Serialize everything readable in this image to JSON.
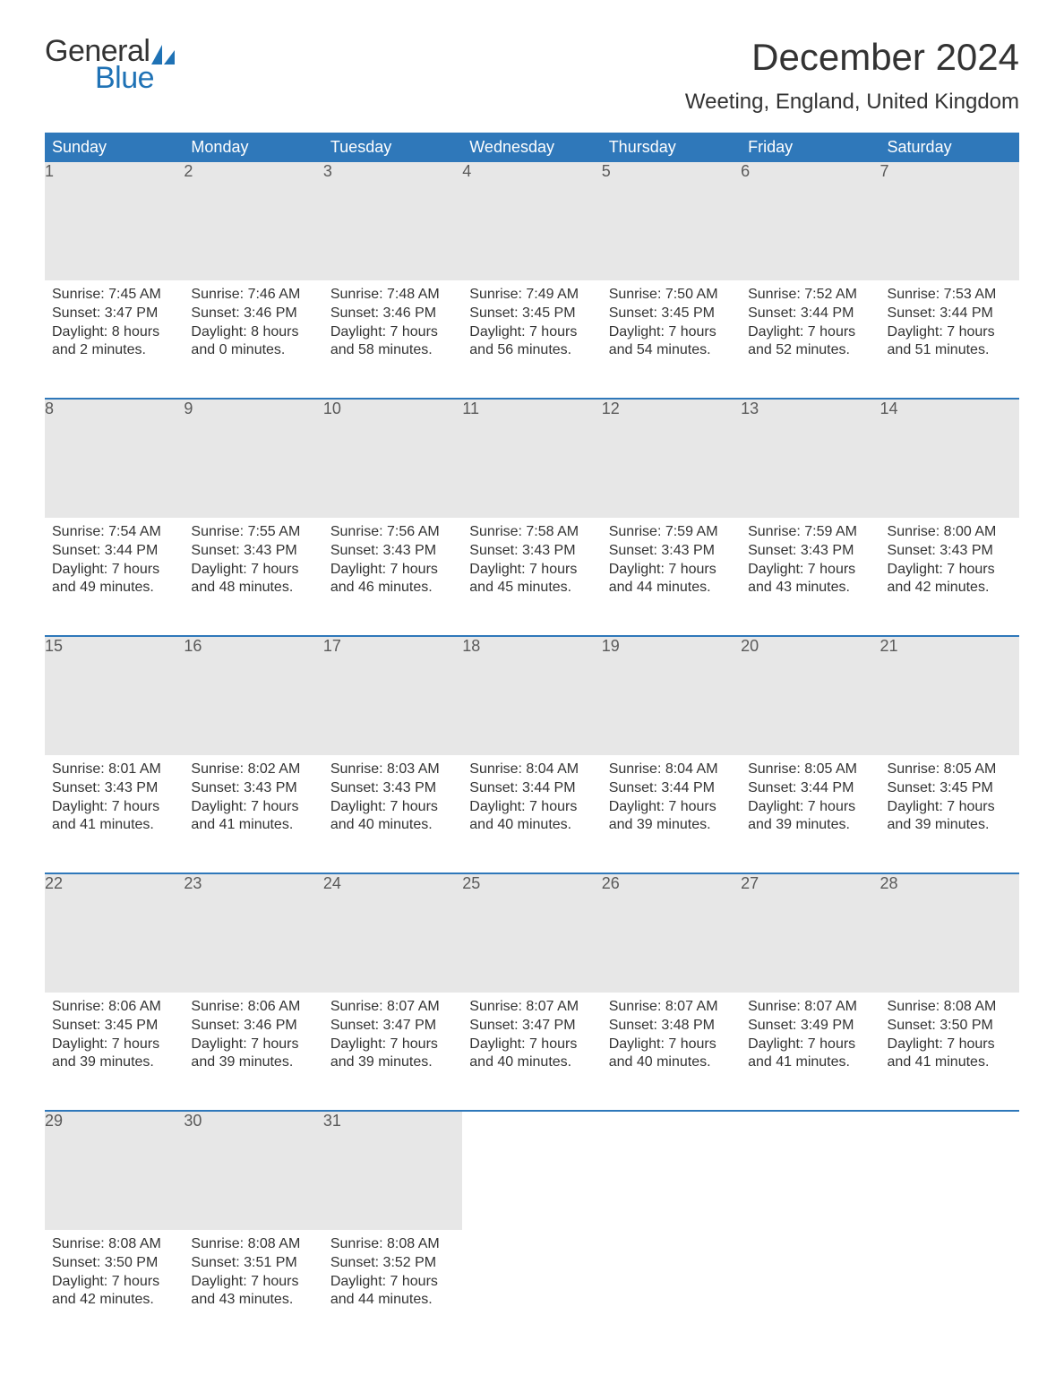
{
  "brand": {
    "word1": "General",
    "word2": "Blue",
    "sail_color": "#1f72b5"
  },
  "header": {
    "month_title": "December 2024",
    "location": "Weeting, England, United Kingdom"
  },
  "calendar": {
    "header_bg": "#2f78ba",
    "header_fg": "#ffffff",
    "daynum_bg": "#e7e7e7",
    "rule_color": "#2f78ba",
    "text_color": "#333333",
    "columns": [
      "Sunday",
      "Monday",
      "Tuesday",
      "Wednesday",
      "Thursday",
      "Friday",
      "Saturday"
    ],
    "weeks": [
      [
        {
          "n": "1",
          "sunrise": "7:45 AM",
          "sunset": "3:47 PM",
          "daylight_h": "8",
          "daylight_m": "2"
        },
        {
          "n": "2",
          "sunrise": "7:46 AM",
          "sunset": "3:46 PM",
          "daylight_h": "8",
          "daylight_m": "0"
        },
        {
          "n": "3",
          "sunrise": "7:48 AM",
          "sunset": "3:46 PM",
          "daylight_h": "7",
          "daylight_m": "58"
        },
        {
          "n": "4",
          "sunrise": "7:49 AM",
          "sunset": "3:45 PM",
          "daylight_h": "7",
          "daylight_m": "56"
        },
        {
          "n": "5",
          "sunrise": "7:50 AM",
          "sunset": "3:45 PM",
          "daylight_h": "7",
          "daylight_m": "54"
        },
        {
          "n": "6",
          "sunrise": "7:52 AM",
          "sunset": "3:44 PM",
          "daylight_h": "7",
          "daylight_m": "52"
        },
        {
          "n": "7",
          "sunrise": "7:53 AM",
          "sunset": "3:44 PM",
          "daylight_h": "7",
          "daylight_m": "51"
        }
      ],
      [
        {
          "n": "8",
          "sunrise": "7:54 AM",
          "sunset": "3:44 PM",
          "daylight_h": "7",
          "daylight_m": "49"
        },
        {
          "n": "9",
          "sunrise": "7:55 AM",
          "sunset": "3:43 PM",
          "daylight_h": "7",
          "daylight_m": "48"
        },
        {
          "n": "10",
          "sunrise": "7:56 AM",
          "sunset": "3:43 PM",
          "daylight_h": "7",
          "daylight_m": "46"
        },
        {
          "n": "11",
          "sunrise": "7:58 AM",
          "sunset": "3:43 PM",
          "daylight_h": "7",
          "daylight_m": "45"
        },
        {
          "n": "12",
          "sunrise": "7:59 AM",
          "sunset": "3:43 PM",
          "daylight_h": "7",
          "daylight_m": "44"
        },
        {
          "n": "13",
          "sunrise": "7:59 AM",
          "sunset": "3:43 PM",
          "daylight_h": "7",
          "daylight_m": "43"
        },
        {
          "n": "14",
          "sunrise": "8:00 AM",
          "sunset": "3:43 PM",
          "daylight_h": "7",
          "daylight_m": "42"
        }
      ],
      [
        {
          "n": "15",
          "sunrise": "8:01 AM",
          "sunset": "3:43 PM",
          "daylight_h": "7",
          "daylight_m": "41"
        },
        {
          "n": "16",
          "sunrise": "8:02 AM",
          "sunset": "3:43 PM",
          "daylight_h": "7",
          "daylight_m": "41"
        },
        {
          "n": "17",
          "sunrise": "8:03 AM",
          "sunset": "3:43 PM",
          "daylight_h": "7",
          "daylight_m": "40"
        },
        {
          "n": "18",
          "sunrise": "8:04 AM",
          "sunset": "3:44 PM",
          "daylight_h": "7",
          "daylight_m": "40"
        },
        {
          "n": "19",
          "sunrise": "8:04 AM",
          "sunset": "3:44 PM",
          "daylight_h": "7",
          "daylight_m": "39"
        },
        {
          "n": "20",
          "sunrise": "8:05 AM",
          "sunset": "3:44 PM",
          "daylight_h": "7",
          "daylight_m": "39"
        },
        {
          "n": "21",
          "sunrise": "8:05 AM",
          "sunset": "3:45 PM",
          "daylight_h": "7",
          "daylight_m": "39"
        }
      ],
      [
        {
          "n": "22",
          "sunrise": "8:06 AM",
          "sunset": "3:45 PM",
          "daylight_h": "7",
          "daylight_m": "39"
        },
        {
          "n": "23",
          "sunrise": "8:06 AM",
          "sunset": "3:46 PM",
          "daylight_h": "7",
          "daylight_m": "39"
        },
        {
          "n": "24",
          "sunrise": "8:07 AM",
          "sunset": "3:47 PM",
          "daylight_h": "7",
          "daylight_m": "39"
        },
        {
          "n": "25",
          "sunrise": "8:07 AM",
          "sunset": "3:47 PM",
          "daylight_h": "7",
          "daylight_m": "40"
        },
        {
          "n": "26",
          "sunrise": "8:07 AM",
          "sunset": "3:48 PM",
          "daylight_h": "7",
          "daylight_m": "40"
        },
        {
          "n": "27",
          "sunrise": "8:07 AM",
          "sunset": "3:49 PM",
          "daylight_h": "7",
          "daylight_m": "41"
        },
        {
          "n": "28",
          "sunrise": "8:08 AM",
          "sunset": "3:50 PM",
          "daylight_h": "7",
          "daylight_m": "41"
        }
      ],
      [
        {
          "n": "29",
          "sunrise": "8:08 AM",
          "sunset": "3:50 PM",
          "daylight_h": "7",
          "daylight_m": "42"
        },
        {
          "n": "30",
          "sunrise": "8:08 AM",
          "sunset": "3:51 PM",
          "daylight_h": "7",
          "daylight_m": "43"
        },
        {
          "n": "31",
          "sunrise": "8:08 AM",
          "sunset": "3:52 PM",
          "daylight_h": "7",
          "daylight_m": "44"
        },
        null,
        null,
        null,
        null
      ]
    ],
    "labels": {
      "sunrise": "Sunrise:",
      "sunset": "Sunset:",
      "daylight_prefix": "Daylight:",
      "hours_word": "hours",
      "and_word": "and",
      "minutes_word": "minutes."
    }
  }
}
